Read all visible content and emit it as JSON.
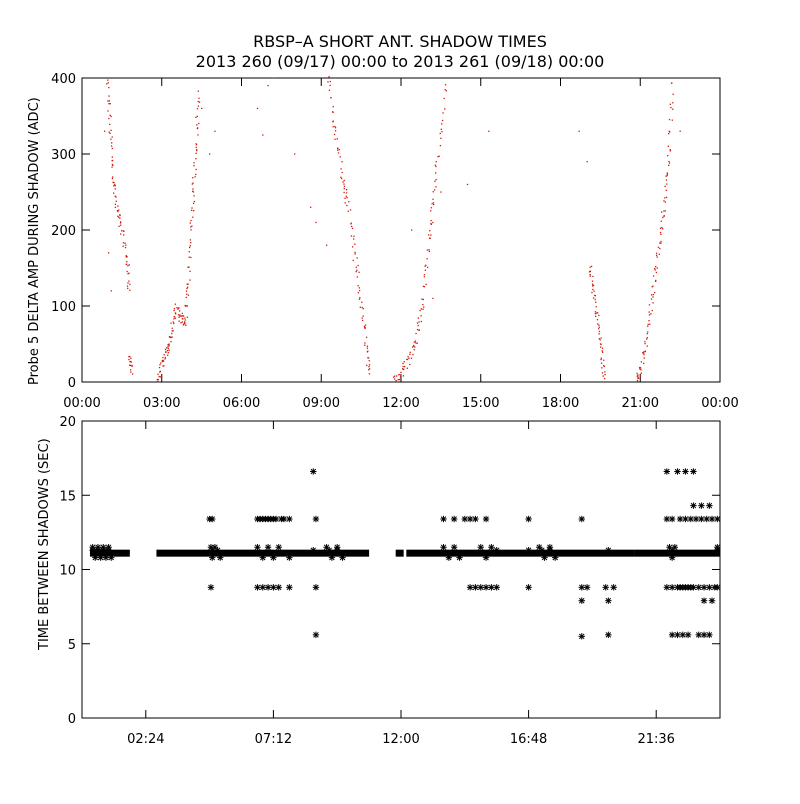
{
  "title_line1": "RBSP–A SHORT ANT. SHADOW TIMES",
  "title_line2": "2013 260 (09/17) 00:00 to 2013 261 (09/18) 00:00",
  "colors": {
    "top_points": "#d11a0a",
    "bottom_points": "#000000",
    "axes": "#000000"
  },
  "chart_data": [
    {
      "type": "scatter",
      "title": "",
      "xlabel": "",
      "ylabel": "Probe 5 DELTA AMP DURING SHADOW (ADC)",
      "xunit": "hours",
      "xlim": [
        0,
        24
      ],
      "ylim": [
        0,
        400
      ],
      "xticks": [
        0,
        3,
        6,
        9,
        12,
        15,
        18,
        21,
        24
      ],
      "xtick_labels": [
        "00:00",
        "03:00",
        "06:00",
        "09:00",
        "12:00",
        "15:00",
        "18:00",
        "21:00",
        "00:00"
      ],
      "yticks": [
        0,
        100,
        200,
        300,
        400
      ],
      "ytick_labels": [
        "0",
        "100",
        "200",
        "300",
        "400"
      ],
      "grid": false,
      "marker": "dot",
      "color": "#d11a0a",
      "segments": [
        {
          "x": [
            0.95,
            1.05,
            1.15,
            1.3,
            1.5,
            1.7,
            1.78
          ],
          "y": [
            400,
            340,
            280,
            230,
            200,
            160,
            120
          ]
        },
        {
          "x": [
            1.8,
            1.88
          ],
          "y": [
            30,
            15
          ]
        },
        {
          "x": [
            2.8,
            3.0,
            3.2,
            3.35,
            3.5
          ],
          "y": [
            0,
            20,
            40,
            60,
            90
          ]
        },
        {
          "x": [
            3.5,
            3.7,
            3.9
          ],
          "y": [
            100,
            85,
            80
          ]
        },
        {
          "x": [
            3.9,
            4.0,
            4.1,
            4.2,
            4.3,
            4.4
          ],
          "y": [
            80,
            130,
            200,
            260,
            320,
            390
          ]
        },
        {
          "x": [
            9.3,
            9.5,
            9.8,
            10.0,
            10.3,
            10.5,
            10.7,
            10.8
          ],
          "y": [
            400,
            330,
            270,
            230,
            160,
            100,
            50,
            0
          ]
        },
        {
          "x": [
            11.7,
            12.0,
            12.3,
            12.6,
            12.8,
            13.0,
            13.2,
            13.4,
            13.7
          ],
          "y": [
            0,
            10,
            30,
            60,
            100,
            170,
            230,
            300,
            400
          ]
        },
        {
          "x": [
            19.1,
            19.25,
            19.4,
            19.55,
            19.65
          ],
          "y": [
            150,
            120,
            80,
            40,
            0
          ]
        },
        {
          "x": [
            20.9,
            21.0,
            21.2,
            21.4,
            21.6,
            21.8,
            21.95,
            22.1,
            22.25
          ],
          "y": [
            0,
            15,
            50,
            100,
            150,
            200,
            250,
            310,
            400
          ]
        }
      ],
      "scattered_points": {
        "x": [
          0.85,
          1.0,
          1.1,
          4.5,
          4.8,
          5.0,
          6.6,
          6.8,
          7.0,
          7.2,
          8.0,
          8.6,
          8.8,
          9.2,
          9.6,
          10.2,
          12.4,
          13.2,
          13.5,
          14.5,
          15.3,
          18.7,
          19.0,
          22.5
        ],
        "y": [
          330,
          170,
          120,
          360,
          300,
          330,
          360,
          325,
          390,
          400,
          300,
          230,
          210,
          180,
          320,
          160,
          200,
          110,
          250,
          260,
          330,
          330,
          290,
          330
        ]
      }
    },
    {
      "type": "scatter",
      "title": "",
      "xlabel": "",
      "ylabel": "TIME BETWEEN SHADOWS (SEC)",
      "xunit": "hours",
      "xlim": [
        0,
        24
      ],
      "ylim": [
        0,
        20
      ],
      "xticks": [
        2.4,
        7.2,
        12,
        16.8,
        21.6
      ],
      "xtick_labels": [
        "02:24",
        "07:12",
        "12:00",
        "16:48",
        "21:36"
      ],
      "yticks": [
        0,
        5,
        10,
        15,
        20
      ],
      "ytick_labels": [
        "0",
        "5",
        "10",
        "15",
        "20"
      ],
      "grid": false,
      "marker": "asterisk",
      "color": "#000000",
      "baseline_value": 11.1,
      "baseline_ranges": [
        [
          0.3,
          1.8
        ],
        [
          2.8,
          10.8
        ],
        [
          11.8,
          12.1
        ],
        [
          12.2,
          20.8
        ],
        [
          20.8,
          24
        ]
      ],
      "points": {
        "x": [
          0.4,
          0.5,
          0.6,
          0.7,
          0.8,
          0.9,
          1.0,
          1.1,
          0.4,
          0.6,
          0.8,
          1.0,
          4.8,
          4.85,
          4.9,
          5.0,
          5.2,
          4.85,
          4.9,
          5.1,
          4.9,
          6.6,
          6.7,
          6.8,
          6.9,
          7.0,
          7.1,
          7.2,
          7.3,
          7.5,
          7.6,
          7.8,
          6.6,
          6.8,
          7.0,
          7.2,
          7.4,
          7.8,
          6.6,
          6.8,
          7.0,
          7.2,
          7.4,
          7.8,
          8.7,
          8.8,
          8.8,
          8.8,
          8.7,
          9.2,
          9.4,
          9.6,
          9.8,
          9.3,
          9.6,
          13.6,
          13.8,
          14.0,
          14.2,
          13.6,
          14.0,
          14.4,
          14.6,
          14.8,
          15.0,
          15.2,
          15.4,
          15.2,
          15.6,
          14.8,
          15.0,
          15.2,
          15.4,
          15.6,
          14.6,
          16.8,
          16.8,
          16.8,
          17.2,
          17.4,
          17.6,
          17.8,
          17.3,
          17.6,
          18.8,
          18.8,
          18.8,
          18.8,
          19.0,
          19.7,
          19.8,
          20.0,
          19.8,
          19.8,
          22.0,
          22.0,
          22.1,
          22.2,
          22.0,
          22.2,
          22.4,
          22.5,
          22.6,
          22.7,
          22.8,
          22.9,
          23.0,
          23.2,
          23.4,
          23.6,
          23.8,
          23.9,
          22.2,
          22.5,
          22.7,
          22.9,
          23.1,
          23.3,
          23.5,
          23.7,
          23.9,
          22.2,
          22.4,
          22.6,
          22.8,
          22.4,
          22.7,
          23.0,
          23.2,
          23.4,
          23.6,
          23.0,
          23.3,
          23.6,
          23.9,
          23.4,
          23.7,
          23.9,
          22.2,
          22.3
        ],
        "y": [
          11.5,
          10.8,
          11.5,
          10.8,
          11.5,
          10.8,
          11.5,
          10.8,
          11.3,
          11.3,
          11.3,
          11.3,
          13.4,
          11.5,
          10.8,
          11.5,
          10.8,
          8.8,
          11.3,
          11.3,
          13.4,
          13.4,
          13.4,
          13.4,
          13.4,
          13.4,
          13.4,
          13.4,
          13.4,
          13.4,
          13.4,
          13.4,
          8.8,
          8.8,
          8.8,
          8.8,
          8.8,
          8.8,
          11.5,
          10.8,
          11.5,
          10.8,
          11.5,
          10.8,
          16.6,
          13.4,
          8.8,
          5.6,
          11.3,
          11.5,
          10.8,
          11.5,
          10.8,
          11.3,
          11.3,
          11.5,
          10.8,
          11.5,
          10.8,
          13.4,
          13.4,
          13.4,
          13.4,
          13.4,
          11.5,
          10.8,
          11.5,
          13.4,
          11.3,
          8.8,
          8.8,
          8.8,
          8.8,
          8.8,
          8.8,
          13.4,
          11.3,
          8.8,
          11.5,
          10.8,
          11.5,
          10.8,
          11.3,
          11.3,
          13.4,
          8.8,
          7.9,
          5.5,
          8.8,
          8.8,
          7.9,
          8.8,
          5.6,
          11.3,
          16.6,
          13.4,
          11.5,
          10.8,
          8.8,
          8.8,
          8.8,
          8.8,
          8.8,
          8.8,
          8.8,
          8.8,
          8.8,
          8.8,
          8.8,
          8.8,
          8.8,
          8.8,
          13.4,
          13.4,
          13.4,
          13.4,
          13.4,
          13.4,
          13.4,
          13.4,
          13.4,
          5.6,
          5.6,
          5.6,
          5.6,
          16.6,
          16.6,
          16.6,
          5.6,
          5.6,
          5.6,
          14.3,
          14.3,
          14.3,
          11.3,
          7.9,
          7.9,
          11.5,
          11.3,
          11.5
        ]
      }
    }
  ]
}
